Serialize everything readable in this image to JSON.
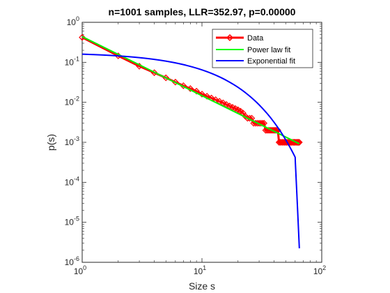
{
  "chart_data": {
    "type": "scatter",
    "title": "n=1001 samples, LLR=352.97, p=0.00000",
    "xlabel": "Size s",
    "ylabel": "p(s)",
    "xscale": "log",
    "yscale": "log",
    "xlim": [
      1,
      100
    ],
    "ylim": [
      1e-06,
      1
    ],
    "x_ticks": [
      {
        "value": 1,
        "base": "10",
        "exp": "0"
      },
      {
        "value": 10,
        "base": "10",
        "exp": "1"
      },
      {
        "value": 100,
        "base": "10",
        "exp": "2"
      }
    ],
    "y_ticks": [
      {
        "value": 1,
        "base": "10",
        "exp": "0"
      },
      {
        "value": 0.1,
        "base": "10",
        "exp": "-1"
      },
      {
        "value": 0.01,
        "base": "10",
        "exp": "-2"
      },
      {
        "value": 0.001,
        "base": "10",
        "exp": "-3"
      },
      {
        "value": 0.0001,
        "base": "10",
        "exp": "-4"
      },
      {
        "value": 1e-05,
        "base": "10",
        "exp": "-5"
      },
      {
        "value": 1e-06,
        "base": "10",
        "exp": "-6"
      }
    ],
    "grid": false,
    "legend_position": "top-right",
    "series": [
      {
        "name": "Data",
        "kind": "markers-line",
        "color": "#ff0000",
        "marker": "diamond",
        "x": [
          1,
          2,
          3,
          4,
          5,
          6,
          7,
          8,
          9,
          10,
          11,
          12,
          13,
          14,
          15,
          16,
          17,
          18,
          19,
          20,
          21,
          22,
          23,
          24,
          25,
          26,
          27,
          28,
          29,
          30,
          31,
          32,
          33,
          34,
          35,
          36,
          37,
          38,
          39,
          40,
          41,
          42,
          43,
          44,
          45,
          46,
          47,
          48,
          49,
          50,
          51,
          52,
          53,
          54,
          55,
          56,
          57,
          58,
          59,
          60,
          61,
          62,
          63,
          64,
          65
        ],
        "y": [
          0.42,
          0.145,
          0.08,
          0.055,
          0.041,
          0.032,
          0.026,
          0.022,
          0.019,
          0.016,
          0.0142,
          0.0128,
          0.0116,
          0.0106,
          0.0097,
          0.0088,
          0.0081,
          0.0075,
          0.007,
          0.0065,
          0.006,
          0.0054,
          0.0045,
          0.004,
          0.004,
          0.004,
          0.003,
          0.003,
          0.003,
          0.003,
          0.003,
          0.003,
          0.003,
          0.002,
          0.002,
          0.002,
          0.002,
          0.002,
          0.002,
          0.002,
          0.002,
          0.002,
          0.002,
          0.001,
          0.001,
          0.001,
          0.001,
          0.001,
          0.001,
          0.001,
          0.001,
          0.001,
          0.001,
          0.001,
          0.001,
          0.001,
          0.001,
          0.001,
          0.001,
          0.001,
          0.001,
          0.001,
          0.001,
          0.001,
          0.001
        ]
      },
      {
        "name": "Power law fit",
        "kind": "line",
        "color": "#00ff00",
        "x": [
          1,
          65
        ],
        "y": [
          0.44,
          0.00092
        ]
      },
      {
        "name": "Exponential fit",
        "kind": "line",
        "color": "#0000ff",
        "x": [
          1,
          5,
          10,
          15,
          20,
          25,
          30,
          35,
          40,
          45,
          50,
          55,
          60,
          65
        ],
        "y": [
          0.16,
          0.107,
          0.064,
          0.0385,
          0.0232,
          0.0139,
          0.0083,
          0.005,
          0.003,
          0.0018,
          0.00108,
          0.00065,
          0.00039,
          2.24e-06
        ]
      }
    ]
  }
}
